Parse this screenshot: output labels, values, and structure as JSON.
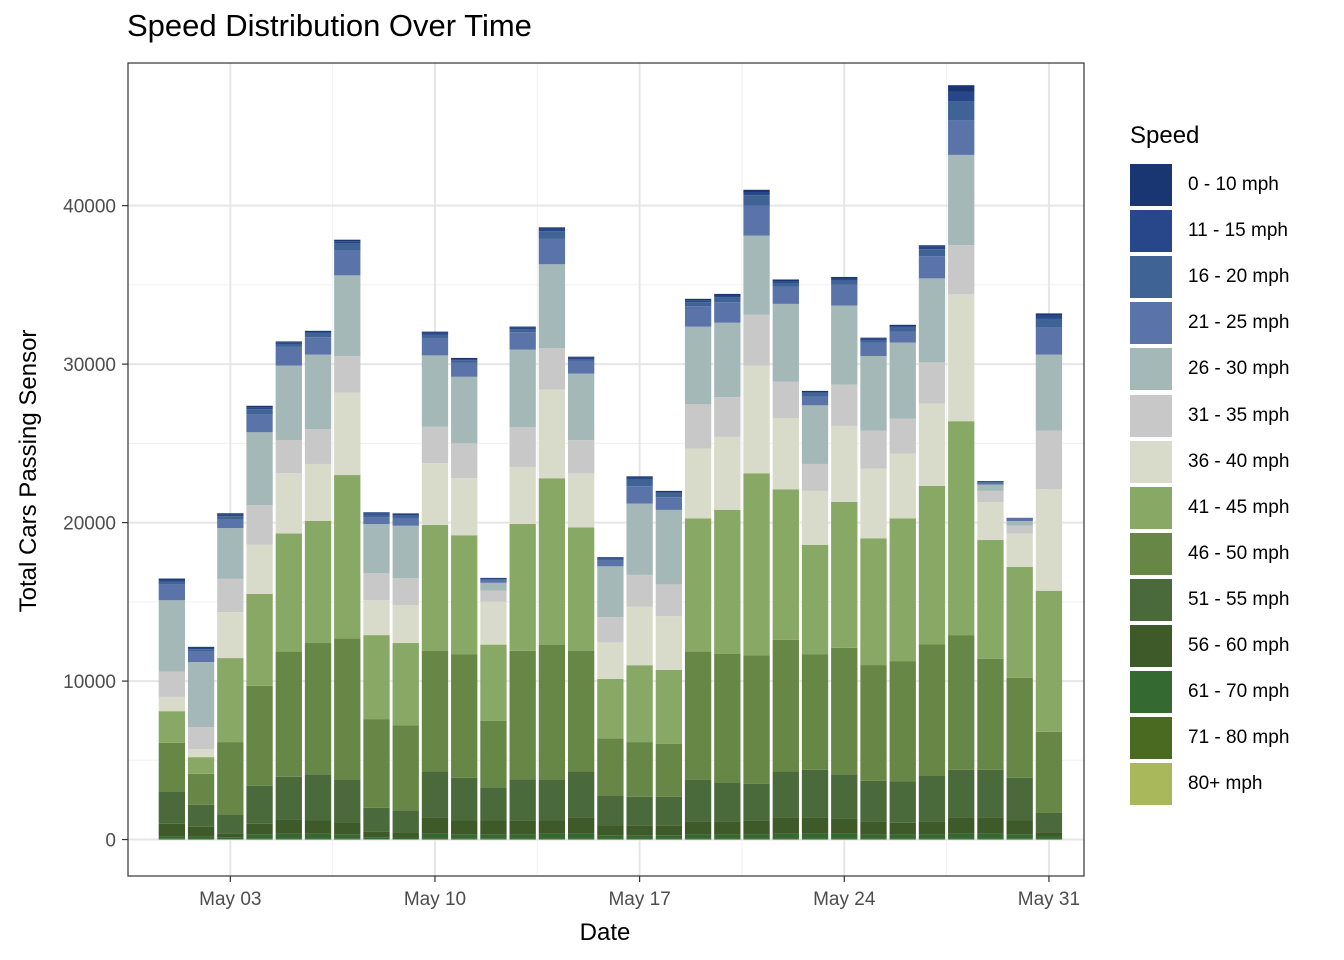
{
  "chart_data": {
    "type": "bar",
    "stacked": true,
    "title": "Speed Distribution Over Time",
    "xlabel": "Date",
    "ylabel": "Total Cars Passing Sensor",
    "xlim": [
      -1.5,
      31.2
    ],
    "ylim": [
      -2300,
      49000
    ],
    "yticks": [
      0,
      10000,
      20000,
      30000,
      40000
    ],
    "xticks": [
      {
        "pos": 2,
        "label": "May 03"
      },
      {
        "pos": 9,
        "label": "May 10"
      },
      {
        "pos": 16,
        "label": "May 17"
      },
      {
        "pos": 23,
        "label": "May 24"
      },
      {
        "pos": 30,
        "label": "May 31"
      }
    ],
    "grid": true,
    "legend_title": "Speed",
    "legend_position": "right",
    "categories": [
      "2024-05-01",
      "2024-05-02",
      "2024-05-03",
      "2024-05-04",
      "2024-05-05",
      "2024-05-06",
      "2024-05-07",
      "2024-05-08",
      "2024-05-09",
      "2024-05-10",
      "2024-05-11",
      "2024-05-12",
      "2024-05-13",
      "2024-05-14",
      "2024-05-15",
      "2024-05-16",
      "2024-05-17",
      "2024-05-18",
      "2024-05-19",
      "2024-05-20",
      "2024-05-21",
      "2024-05-22",
      "2024-05-23",
      "2024-05-24",
      "2024-05-25",
      "2024-05-26",
      "2024-05-27",
      "2024-05-28",
      "2024-05-29",
      "2024-05-30",
      "2024-05-31"
    ],
    "series": [
      {
        "name": "80+ mph",
        "color": "#a8b85a",
        "values": [
          0,
          0,
          0,
          0,
          0,
          0,
          0,
          0,
          0,
          0,
          0,
          0,
          0,
          0,
          0,
          0,
          0,
          0,
          0,
          0,
          0,
          0,
          0,
          0,
          0,
          0,
          0,
          0,
          0,
          0,
          0
        ]
      },
      {
        "name": "71 - 80 mph",
        "color": "#4a6a22",
        "values": [
          50,
          40,
          30,
          50,
          60,
          60,
          50,
          30,
          30,
          60,
          50,
          50,
          60,
          60,
          60,
          40,
          40,
          40,
          60,
          60,
          60,
          60,
          60,
          60,
          60,
          60,
          60,
          60,
          60,
          50,
          40
        ]
      },
      {
        "name": "61 - 70 mph",
        "color": "#346a32",
        "values": [
          150,
          130,
          120,
          250,
          300,
          300,
          250,
          120,
          100,
          300,
          250,
          250,
          250,
          300,
          300,
          200,
          200,
          200,
          250,
          250,
          250,
          300,
          300,
          300,
          250,
          250,
          250,
          300,
          300,
          250,
          150
        ]
      },
      {
        "name": "56 - 60 mph",
        "color": "#3d5a28",
        "values": [
          800,
          630,
          250,
          700,
          900,
          840,
          800,
          350,
          320,
          1040,
          900,
          900,
          900,
          840,
          1040,
          650,
          660,
          660,
          850,
          800,
          900,
          1040,
          1040,
          940,
          800,
          750,
          800,
          1040,
          1040,
          900,
          260
        ]
      },
      {
        "name": "51 - 55 mph",
        "color": "#4a6a3c",
        "values": [
          2000,
          1400,
          1200,
          2400,
          2700,
          2900,
          2700,
          1500,
          1400,
          2900,
          2700,
          2100,
          2600,
          2600,
          2900,
          1900,
          1800,
          1800,
          2600,
          2500,
          2300,
          2900,
          3000,
          2800,
          2600,
          2600,
          2900,
          3000,
          3000,
          2700,
          1250
        ]
      },
      {
        "name": "46 - 50 mph",
        "color": "#678746",
        "values": [
          3100,
          1950,
          4550,
          6300,
          7900,
          8300,
          8900,
          5600,
          5350,
          7600,
          7800,
          4200,
          8100,
          8500,
          7600,
          3600,
          3450,
          3350,
          8100,
          8100,
          8100,
          8300,
          7300,
          8000,
          7300,
          7600,
          8300,
          8500,
          7000,
          6300,
          5100
        ]
      },
      {
        "name": "41 - 45 mph",
        "color": "#88a865",
        "values": [
          2000,
          1050,
          5300,
          5800,
          7450,
          7700,
          10300,
          5300,
          5200,
          7950,
          7500,
          4800,
          8000,
          10500,
          7800,
          3750,
          4850,
          4650,
          8400,
          9100,
          11500,
          9500,
          6900,
          9200,
          8000,
          9000,
          10000,
          13500,
          7500,
          7000,
          8900
        ]
      },
      {
        "name": "36 - 40 mph",
        "color": "#d9dbca",
        "values": [
          900,
          500,
          2900,
          3100,
          3800,
          3600,
          5200,
          2200,
          2400,
          3900,
          3600,
          2700,
          3600,
          5600,
          3400,
          2300,
          3700,
          3400,
          4400,
          4600,
          6800,
          4500,
          3400,
          4800,
          4400,
          4100,
          5200,
          8000,
          2400,
          2100,
          6400
        ]
      },
      {
        "name": "31 - 35 mph",
        "color": "#c8c8c8",
        "values": [
          1600,
          1400,
          2100,
          2500,
          2100,
          2200,
          2300,
          1700,
          1700,
          2300,
          2200,
          700,
          2500,
          2600,
          2100,
          1600,
          2000,
          2000,
          2800,
          2500,
          3200,
          2300,
          1700,
          2600,
          2400,
          2200,
          2600,
          3100,
          700,
          500,
          3700
        ]
      },
      {
        "name": "26 - 30 mph",
        "color": "#a5b8b8",
        "values": [
          4500,
          4100,
          3200,
          4600,
          4700,
          4700,
          5100,
          3100,
          3300,
          4500,
          4200,
          500,
          4900,
          5300,
          4200,
          3200,
          4500,
          4700,
          4900,
          4700,
          5000,
          4900,
          3700,
          5000,
          4700,
          4800,
          5300,
          5700,
          400,
          300,
          4800
        ]
      },
      {
        "name": "21 - 25 mph",
        "color": "#5a74aa",
        "values": [
          1000,
          650,
          550,
          1150,
          1200,
          1100,
          1600,
          450,
          450,
          1100,
          900,
          150,
          1100,
          1600,
          800,
          350,
          1100,
          800,
          1300,
          1300,
          1900,
          1100,
          550,
          1300,
          850,
          700,
          1400,
          2200,
          100,
          100,
          1700
        ]
      },
      {
        "name": "16 - 20 mph",
        "color": "#3e6394",
        "values": [
          180,
          160,
          200,
          300,
          160,
          220,
          400,
          160,
          180,
          220,
          140,
          80,
          180,
          480,
          120,
          120,
          400,
          220,
          250,
          300,
          650,
          220,
          180,
          280,
          160,
          240,
          440,
          1200,
          50,
          40,
          550
        ]
      },
      {
        "name": "11 - 15 mph",
        "color": "#27478a",
        "values": [
          100,
          80,
          100,
          120,
          80,
          100,
          150,
          80,
          80,
          100,
          80,
          40,
          100,
          150,
          80,
          60,
          120,
          100,
          120,
          120,
          200,
          120,
          100,
          120,
          80,
          100,
          150,
          600,
          40,
          30,
          220
        ]
      },
      {
        "name": "0 - 10 mph",
        "color": "#1a3672",
        "values": [
          90,
          70,
          90,
          100,
          80,
          80,
          100,
          60,
          70,
          80,
          70,
          40,
          80,
          100,
          70,
          50,
          100,
          80,
          90,
          100,
          140,
          100,
          80,
          100,
          70,
          80,
          100,
          400,
          30,
          30,
          130
        ]
      }
    ]
  }
}
